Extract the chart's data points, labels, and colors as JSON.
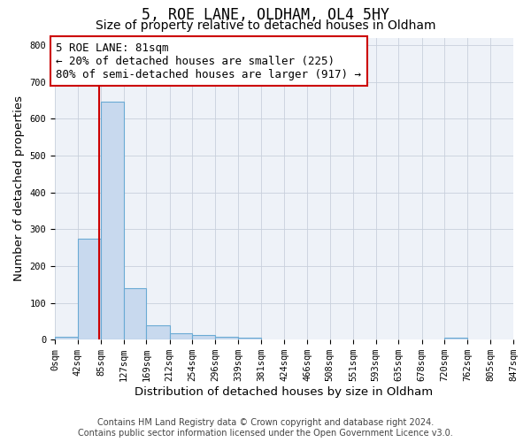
{
  "title": "5, ROE LANE, OLDHAM, OL4 5HY",
  "subtitle": "Size of property relative to detached houses in Oldham",
  "xlabel": "Distribution of detached houses by size in Oldham",
  "ylabel": "Number of detached properties",
  "bin_edges": [
    0,
    42,
    85,
    127,
    169,
    212,
    254,
    296,
    339,
    381,
    424,
    466,
    508,
    551,
    593,
    635,
    678,
    720,
    762,
    805,
    847
  ],
  "bin_labels": [
    "0sqm",
    "42sqm",
    "85sqm",
    "127sqm",
    "169sqm",
    "212sqm",
    "254sqm",
    "296sqm",
    "339sqm",
    "381sqm",
    "424sqm",
    "466sqm",
    "508sqm",
    "551sqm",
    "593sqm",
    "635sqm",
    "678sqm",
    "720sqm",
    "762sqm",
    "805sqm",
    "847sqm"
  ],
  "bar_heights": [
    8,
    273,
    645,
    140,
    38,
    18,
    12,
    8,
    5,
    0,
    0,
    0,
    0,
    0,
    0,
    0,
    0,
    5,
    0,
    0
  ],
  "bar_color": "#c8d9ee",
  "bar_edge_color": "#6aaad4",
  "property_line_x": 81,
  "property_line_color": "#cc0000",
  "annotation_line1": "5 ROE LANE: 81sqm",
  "annotation_line2": "← 20% of detached houses are smaller (225)",
  "annotation_line3": "80% of semi-detached houses are larger (917) →",
  "annotation_box_color": "#ffffff",
  "annotation_box_edge_color": "#cc0000",
  "ylim": [
    0,
    820
  ],
  "yticks": [
    0,
    100,
    200,
    300,
    400,
    500,
    600,
    700,
    800
  ],
  "footer_line1": "Contains HM Land Registry data © Crown copyright and database right 2024.",
  "footer_line2": "Contains public sector information licensed under the Open Government Licence v3.0.",
  "background_color": "#ffffff",
  "plot_bg_color": "#eef2f8",
  "grid_color": "#c8d0dc",
  "title_fontsize": 12,
  "subtitle_fontsize": 10,
  "axis_label_fontsize": 9.5,
  "tick_fontsize": 7.5,
  "annotation_fontsize": 9,
  "footer_fontsize": 7
}
